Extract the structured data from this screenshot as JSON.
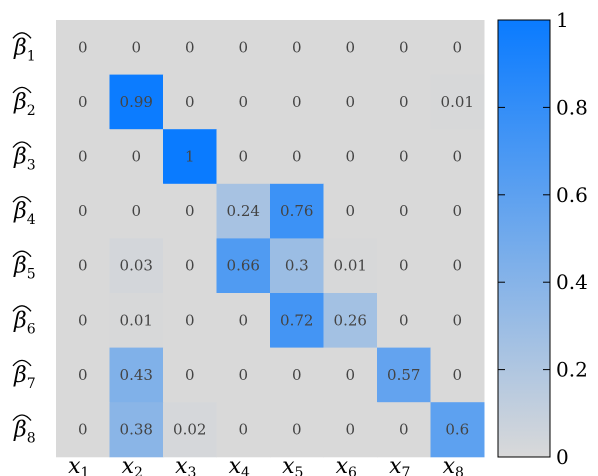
{
  "chart_data": {
    "type": "heatmap",
    "rows": [
      "β̂1",
      "β̂2",
      "β̂3",
      "β̂4",
      "β̂5",
      "β̂6",
      "β̂7",
      "β̂8"
    ],
    "row_labels": [
      {
        "base": "β",
        "sub": "1"
      },
      {
        "base": "β",
        "sub": "2"
      },
      {
        "base": "β",
        "sub": "3"
      },
      {
        "base": "β",
        "sub": "4"
      },
      {
        "base": "β",
        "sub": "5"
      },
      {
        "base": "β",
        "sub": "6"
      },
      {
        "base": "β",
        "sub": "7"
      },
      {
        "base": "β",
        "sub": "8"
      }
    ],
    "columns": [
      {
        "base": "x",
        "sub": "1"
      },
      {
        "base": "x",
        "sub": "2"
      },
      {
        "base": "x",
        "sub": "3"
      },
      {
        "base": "x",
        "sub": "4"
      },
      {
        "base": "x",
        "sub": "5"
      },
      {
        "base": "x",
        "sub": "6"
      },
      {
        "base": "x",
        "sub": "7"
      },
      {
        "base": "x",
        "sub": "8"
      }
    ],
    "values": [
      [
        0,
        0,
        0,
        0,
        0,
        0,
        0,
        0
      ],
      [
        0,
        0.99,
        0,
        0,
        0,
        0,
        0,
        0.01
      ],
      [
        0,
        0,
        1,
        0,
        0,
        0,
        0,
        0
      ],
      [
        0,
        0,
        0,
        0.24,
        0.76,
        0,
        0,
        0
      ],
      [
        0,
        0.03,
        0,
        0.66,
        0.3,
        0.01,
        0,
        0
      ],
      [
        0,
        0.01,
        0,
        0,
        0.72,
        0.26,
        0,
        0
      ],
      [
        0,
        0.43,
        0,
        0,
        0,
        0,
        0.57,
        0
      ],
      [
        0,
        0.38,
        0.02,
        0,
        0,
        0,
        0,
        0.6
      ]
    ],
    "labels": [
      [
        "0",
        "0",
        "0",
        "0",
        "0",
        "0",
        "0",
        "0"
      ],
      [
        "0",
        "0.99",
        "0",
        "0",
        "0",
        "0",
        "0",
        "0.01"
      ],
      [
        "0",
        "0",
        "1",
        "0",
        "0",
        "0",
        "0",
        "0"
      ],
      [
        "0",
        "0",
        "0",
        "0.24",
        "0.76",
        "0",
        "0",
        "0"
      ],
      [
        "0",
        "0.03",
        "0",
        "0.66",
        "0.3",
        "0.01",
        "0",
        "0"
      ],
      [
        "0",
        "0.01",
        "0",
        "0",
        "0.72",
        "0.26",
        "0",
        "0"
      ],
      [
        "0",
        "0.43",
        "0",
        "0",
        "0",
        "0",
        "0.57",
        "0"
      ],
      [
        "0",
        "0.38",
        "0.02",
        "0",
        "0",
        "0",
        "0",
        "0.6"
      ]
    ],
    "colorbar": {
      "range": [
        0,
        1
      ],
      "ticks": [
        "0",
        "0.2",
        "0.4",
        "0.6",
        "0.8",
        "1"
      ],
      "color_low": "#d9d9d9",
      "color_high": "#0a7bff"
    },
    "grid": false
  }
}
